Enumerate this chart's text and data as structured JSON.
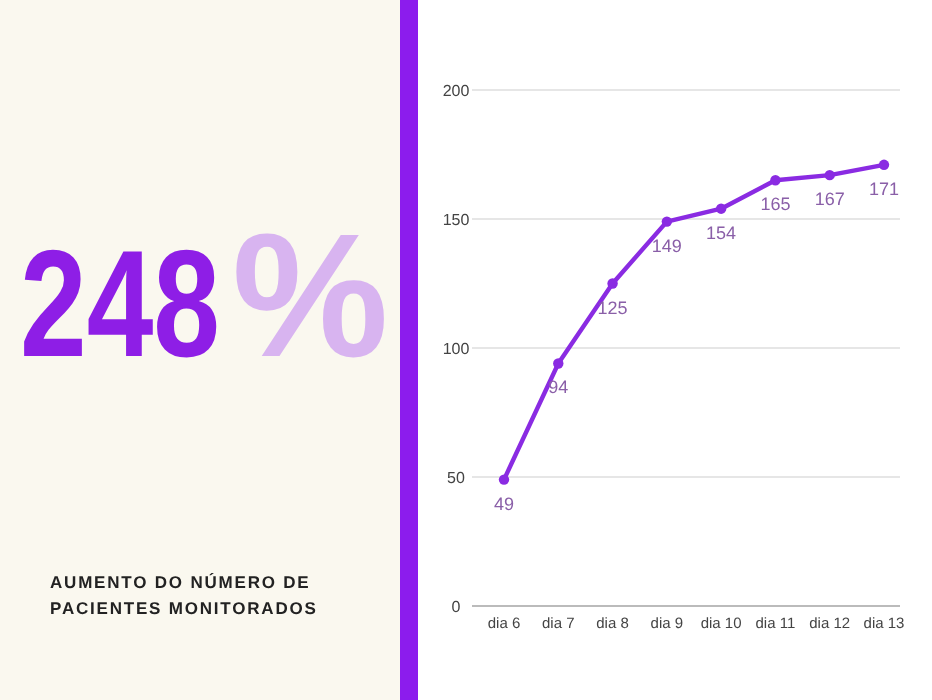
{
  "chart_data": {
    "type": "line",
    "title": "AUMENTO DO NÚMERO DE PACIENTES MONITORADOS",
    "annotations": [
      "248",
      "%"
    ],
    "categories": [
      "dia 6",
      "dia 7",
      "dia 8",
      "dia 9",
      "dia 10",
      "dia 11",
      "dia 12",
      "dia 13"
    ],
    "series": [
      {
        "color": "#8a2be2",
        "values": [
          49,
          94,
          125,
          149,
          154,
          165,
          167,
          171
        ]
      }
    ],
    "ylim": [
      0,
      200
    ],
    "yticks": [
      0,
      50,
      100,
      150,
      200
    ],
    "grid": "y",
    "marker": "circle",
    "data_labels": true
  }
}
